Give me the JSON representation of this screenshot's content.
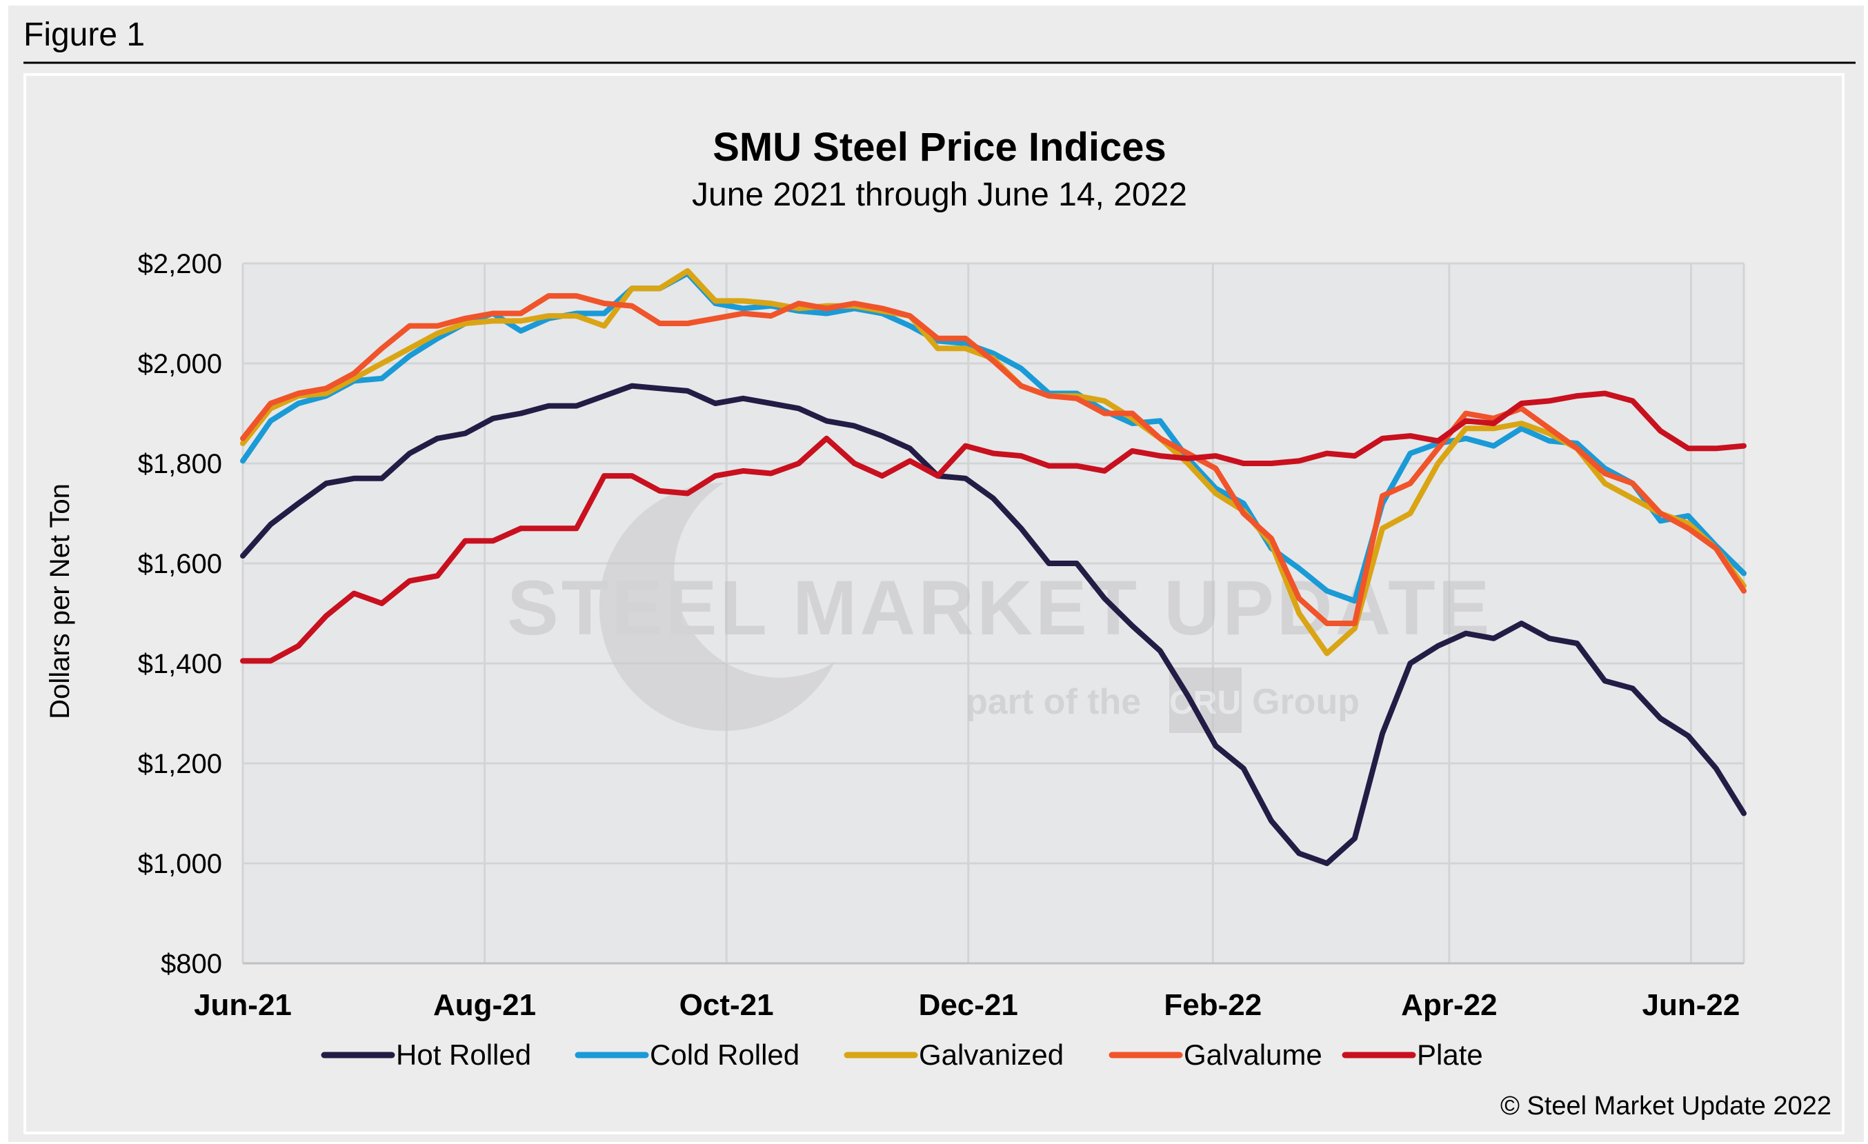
{
  "figure_label": "Figure 1",
  "copyright": "© Steel Market Update 2022",
  "watermark": {
    "brand": "STEEL MARKET UPDATE",
    "tagline_pre": "part of the",
    "tagline_logo": "CRU",
    "tagline_post": "Group"
  },
  "colors": {
    "Hot Rolled": "#231c45",
    "Cold Rolled": "#1a9ad6",
    "Galvanized": "#d9a514",
    "Galvalume": "#f0542a",
    "Plate": "#c8101e"
  },
  "chart_data": {
    "type": "line",
    "title": "SMU Steel Price Indices",
    "subtitle": "June 2021 through June 14, 2022",
    "xlabel": "",
    "ylabel": "Dollars per Net Ton",
    "ylim": [
      800,
      2200
    ],
    "yticks": [
      800,
      1000,
      1200,
      1400,
      1600,
      1800,
      2000,
      2200
    ],
    "ytick_labels": [
      "$800",
      "$1,000",
      "$1,200",
      "$1,400",
      "$1,600",
      "$1,800",
      "$2,000",
      "$2,200"
    ],
    "xticks_week_index": [
      0,
      8.7,
      17.4,
      26.1,
      34.9,
      43.4,
      52.1
    ],
    "xtick_labels": [
      "Jun-21",
      "Aug-21",
      "Oct-21",
      "Dec-21",
      "Feb-22",
      "Apr-22",
      "Jun-22"
    ],
    "x_unit": "weeks since early June 2021",
    "grid": true,
    "legend_position": "bottom",
    "series": [
      {
        "name": "Hot Rolled",
        "values": [
          1615,
          1678,
          1720,
          1760,
          1770,
          1770,
          1820,
          1850,
          1860,
          1890,
          1900,
          1915,
          1915,
          1935,
          1955,
          1950,
          1945,
          1920,
          1930,
          1920,
          1910,
          1885,
          1875,
          1855,
          1830,
          1775,
          1770,
          1730,
          1670,
          1600,
          1600,
          1530,
          1475,
          1425,
          1335,
          1235,
          1190,
          1085,
          1020,
          1000,
          1050,
          1260,
          1400,
          1435,
          1460,
          1450,
          1480,
          1450,
          1440,
          1365,
          1350,
          1290,
          1255,
          1190,
          1100
        ]
      },
      {
        "name": "Cold Rolled",
        "values": [
          1805,
          1885,
          1920,
          1935,
          1965,
          1970,
          2015,
          2050,
          2080,
          2100,
          2065,
          2090,
          2100,
          2100,
          2150,
          2150,
          2180,
          2120,
          2110,
          2115,
          2105,
          2100,
          2110,
          2100,
          2075,
          2045,
          2040,
          2020,
          1990,
          1940,
          1940,
          1905,
          1880,
          1885,
          1810,
          1750,
          1720,
          1630,
          1590,
          1545,
          1525,
          1720,
          1820,
          1840,
          1850,
          1835,
          1870,
          1845,
          1840,
          1790,
          1760,
          1685,
          1695,
          1635,
          1580
        ]
      },
      {
        "name": "Galvanized",
        "values": [
          1840,
          1910,
          1935,
          1940,
          1970,
          2000,
          2030,
          2060,
          2080,
          2085,
          2085,
          2095,
          2095,
          2075,
          2150,
          2150,
          2185,
          2125,
          2125,
          2120,
          2110,
          2115,
          2115,
          2105,
          2095,
          2030,
          2030,
          2010,
          1955,
          1935,
          1935,
          1925,
          1890,
          1850,
          1800,
          1740,
          1705,
          1640,
          1500,
          1420,
          1470,
          1670,
          1700,
          1800,
          1870,
          1870,
          1880,
          1860,
          1830,
          1760,
          1730,
          1700,
          1680,
          1630,
          1555
        ]
      },
      {
        "name": "Galvalume",
        "values": [
          1850,
          1920,
          1940,
          1950,
          1980,
          2030,
          2075,
          2075,
          2090,
          2100,
          2100,
          2135,
          2135,
          2120,
          2115,
          2080,
          2080,
          2090,
          2100,
          2095,
          2120,
          2110,
          2120,
          2110,
          2095,
          2050,
          2050,
          2005,
          1955,
          1935,
          1930,
          1900,
          1900,
          1850,
          1820,
          1790,
          1700,
          1650,
          1530,
          1480,
          1480,
          1735,
          1760,
          1830,
          1900,
          1890,
          1910,
          1870,
          1830,
          1780,
          1760,
          1700,
          1670,
          1630,
          1545
        ]
      },
      {
        "name": "Plate",
        "values": [
          1405,
          1405,
          1435,
          1495,
          1540,
          1520,
          1565,
          1575,
          1645,
          1645,
          1670,
          1670,
          1670,
          1775,
          1775,
          1745,
          1740,
          1775,
          1785,
          1780,
          1800,
          1850,
          1800,
          1775,
          1805,
          1775,
          1835,
          1820,
          1815,
          1795,
          1795,
          1785,
          1825,
          1815,
          1810,
          1815,
          1800,
          1800,
          1805,
          1820,
          1815,
          1850,
          1855,
          1845,
          1885,
          1880,
          1920,
          1925,
          1935,
          1940,
          1925,
          1865,
          1830,
          1830,
          1835
        ]
      }
    ]
  }
}
